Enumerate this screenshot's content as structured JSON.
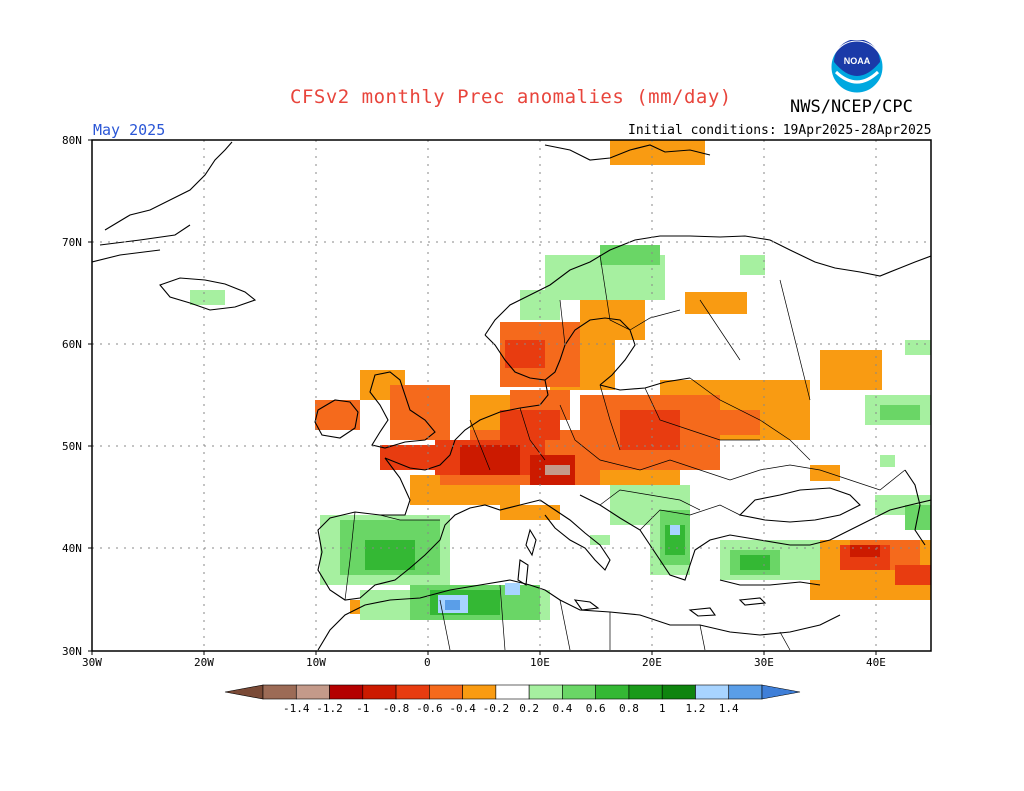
{
  "header": {
    "title": "CFSv2 monthly Prec anomalies (mm/day)",
    "org": "NWS/NCEP/CPC",
    "period": "May 2025",
    "ic_label": "Initial conditions:",
    "ic_range": "19Apr2025-28Apr2025",
    "logo_text": "NOAA"
  },
  "axes": {
    "lat_labels": [
      "80N",
      "70N",
      "60N",
      "50N",
      "40N",
      "30N"
    ],
    "lon_labels": [
      "30W",
      "20W",
      "10W",
      "0",
      "10E",
      "20E",
      "30E",
      "40E"
    ]
  },
  "colorbar": {
    "labels": [
      "-1.4",
      "-1.2",
      "-1",
      "-0.8",
      "-0.6",
      "-0.4",
      "-0.2",
      "0.2",
      "0.4",
      "0.6",
      "0.8",
      "1",
      "1.2",
      "1.4"
    ],
    "colors": [
      "#7a4a36",
      "#9c6b56",
      "#c49a8a",
      "#b40000",
      "#cc1a00",
      "#e83c10",
      "#f56a1c",
      "#f99b12",
      "#ffffff",
      "#a6f0a0",
      "#6ad666",
      "#34b834",
      "#1a9a1a",
      "#0e840e",
      "#a8d4ff",
      "#5a9ee8",
      "#3f7fd8"
    ]
  }
}
